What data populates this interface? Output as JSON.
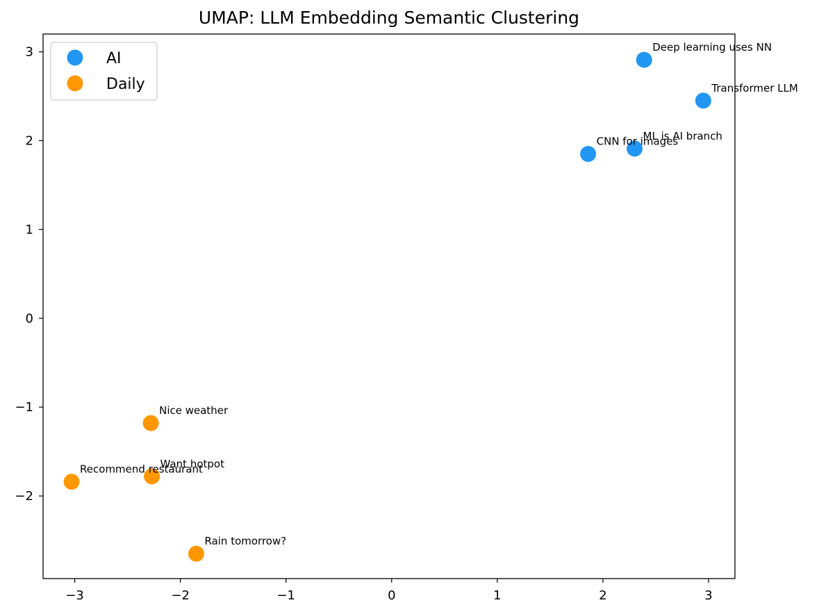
{
  "chart_data": {
    "type": "scatter",
    "title": "UMAP: LLM Embedding Semantic Clustering",
    "xlabel": "",
    "ylabel": "",
    "xlim": [
      -3.3,
      3.25
    ],
    "ylim": [
      -2.93,
      3.2
    ],
    "grid": false,
    "legend_position": "top-left",
    "x_ticks": [
      {
        "value": -3,
        "label": "−3"
      },
      {
        "value": -2,
        "label": "−2"
      },
      {
        "value": -1,
        "label": "−1"
      },
      {
        "value": 0,
        "label": "0"
      },
      {
        "value": 1,
        "label": "1"
      },
      {
        "value": 2,
        "label": "2"
      },
      {
        "value": 3,
        "label": "3"
      }
    ],
    "y_ticks": [
      {
        "value": -2,
        "label": "−2"
      },
      {
        "value": -1,
        "label": "−1"
      },
      {
        "value": 0,
        "label": "0"
      },
      {
        "value": 1,
        "label": "1"
      },
      {
        "value": 2,
        "label": "2"
      },
      {
        "value": 3,
        "label": "3"
      }
    ],
    "series": [
      {
        "name": "AI",
        "color": "#2196f3",
        "points": [
          {
            "x": 2.39,
            "y": 2.91,
            "label": "Deep learning uses NN"
          },
          {
            "x": 2.95,
            "y": 2.45,
            "label": "Transformer LLM"
          },
          {
            "x": 1.86,
            "y": 1.85,
            "label": "CNN for images"
          },
          {
            "x": 2.3,
            "y": 1.91,
            "label": "ML is AI branch"
          }
        ]
      },
      {
        "name": "Daily",
        "color": "#ff9800",
        "points": [
          {
            "x": -2.28,
            "y": -1.18,
            "label": "Nice weather"
          },
          {
            "x": -2.27,
            "y": -1.78,
            "label": "Want hotpot"
          },
          {
            "x": -3.03,
            "y": -1.84,
            "label": "Recommend restaurant"
          },
          {
            "x": -1.85,
            "y": -2.65,
            "label": "Rain tomorrow?"
          }
        ]
      }
    ]
  }
}
